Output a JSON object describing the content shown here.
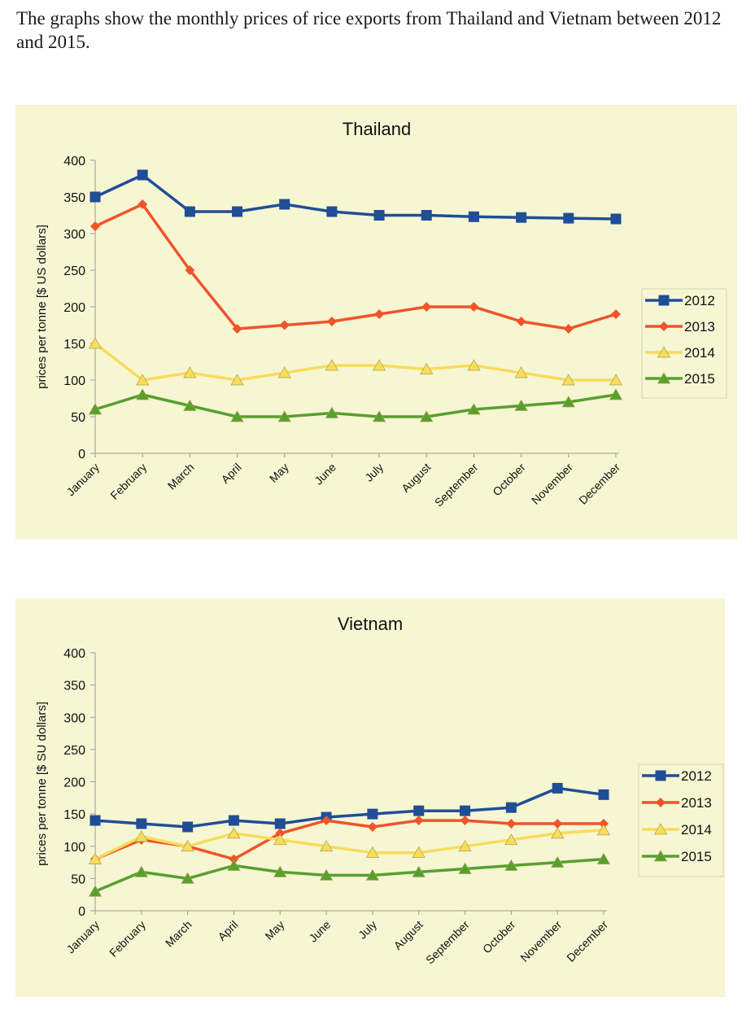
{
  "intro_text": "The graphs show the monthly prices of rice exports from Thailand and Vietnam between 2012 and 2015.",
  "colors": {
    "panel_bg": "#f6f6d3",
    "axis": "#9a9a9a",
    "s2012": "#1f4e96",
    "s2013": "#f0542a",
    "s2014": "#f8dc5a",
    "s2015": "#57a02e"
  },
  "chart_data": [
    {
      "type": "line",
      "title": "Thailand",
      "ylabel": "prices per tonne [$ US dollars]",
      "xlabel": "",
      "ylim": [
        0,
        400
      ],
      "yticks": [
        0,
        50,
        100,
        150,
        200,
        250,
        300,
        350,
        400
      ],
      "grid": false,
      "legend_position": "right",
      "categories": [
        "January",
        "February",
        "March",
        "April",
        "May",
        "June",
        "July",
        "August",
        "September",
        "October",
        "November",
        "December"
      ],
      "series": [
        {
          "name": "2012",
          "color": "#1f4e96",
          "marker": "square",
          "values": [
            350,
            380,
            330,
            330,
            340,
            330,
            325,
            325,
            323,
            322,
            321,
            320
          ]
        },
        {
          "name": "2013",
          "color": "#f0542a",
          "marker": "diamond",
          "values": [
            310,
            340,
            250,
            170,
            175,
            180,
            190,
            200,
            200,
            180,
            170,
            190
          ]
        },
        {
          "name": "2014",
          "color": "#f8dc5a",
          "marker": "triangle",
          "values": [
            150,
            100,
            110,
            100,
            110,
            120,
            120,
            115,
            120,
            110,
            100,
            100
          ]
        },
        {
          "name": "2015",
          "color": "#57a02e",
          "marker": "triangle",
          "values": [
            60,
            80,
            65,
            50,
            50,
            55,
            50,
            50,
            60,
            65,
            70,
            80
          ]
        }
      ]
    },
    {
      "type": "line",
      "title": "Vietnam",
      "ylabel": "prices per tonne [$ SU dollars]",
      "xlabel": "",
      "ylim": [
        0,
        400
      ],
      "yticks": [
        0,
        50,
        100,
        150,
        200,
        250,
        300,
        350,
        400
      ],
      "grid": false,
      "legend_position": "right",
      "categories": [
        "January",
        "February",
        "March",
        "April",
        "May",
        "June",
        "July",
        "August",
        "September",
        "October",
        "November",
        "December"
      ],
      "series": [
        {
          "name": "2012",
          "color": "#1f4e96",
          "marker": "square",
          "values": [
            140,
            135,
            130,
            140,
            135,
            145,
            150,
            155,
            155,
            160,
            190,
            180
          ]
        },
        {
          "name": "2013",
          "color": "#f0542a",
          "marker": "diamond",
          "values": [
            80,
            110,
            100,
            80,
            120,
            140,
            130,
            140,
            140,
            135,
            135,
            135
          ]
        },
        {
          "name": "2014",
          "color": "#f8dc5a",
          "marker": "triangle",
          "values": [
            80,
            115,
            100,
            120,
            110,
            100,
            90,
            90,
            100,
            110,
            120,
            125
          ]
        },
        {
          "name": "2015",
          "color": "#57a02e",
          "marker": "triangle",
          "values": [
            30,
            60,
            50,
            70,
            60,
            55,
            55,
            60,
            65,
            70,
            75,
            80
          ]
        }
      ]
    }
  ]
}
